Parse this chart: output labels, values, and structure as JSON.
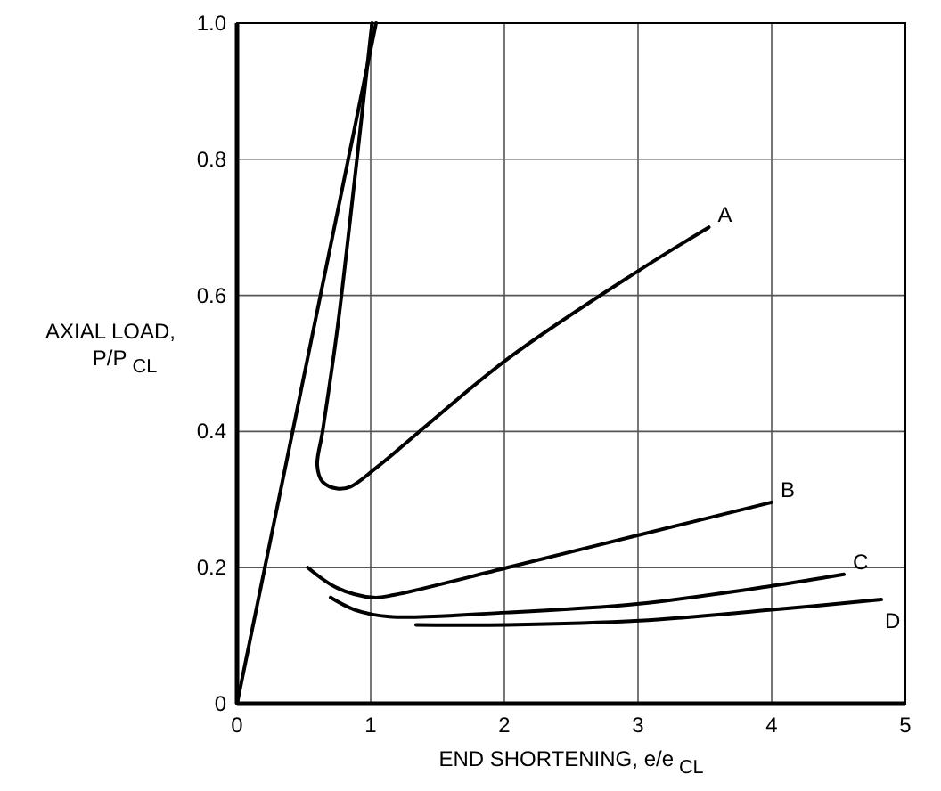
{
  "chart_data": {
    "type": "line",
    "xlabel": "END SHORTENING, e/e$_{CL}$",
    "ylabel": "AXIAL LOAD,\nP/P$_{CL}$",
    "xlim": [
      0,
      5
    ],
    "ylim": [
      0,
      1
    ],
    "xticks": [
      0,
      1,
      2,
      3,
      4,
      5
    ],
    "yticks": [
      0,
      0.2,
      0.4,
      0.6,
      0.8,
      {
        "value": 1,
        "label": "1.0"
      }
    ],
    "grid": true,
    "marker": "none",
    "line_style": "solid",
    "series": [
      {
        "color": "#000000",
        "x": [
          0,
          1.04
        ],
        "values": [
          0,
          1.0
        ]
      },
      {
        "name": "A",
        "color": "#000000",
        "x": [
          1.01,
          0.88,
          0.75,
          0.64,
          0.6,
          0.64,
          0.75,
          0.85,
          1.05,
          2.02,
          3.01,
          3.53
        ],
        "values": [
          1.0,
          0.77,
          0.55,
          0.4,
          0.35,
          0.326,
          0.316,
          0.319,
          0.348,
          0.506,
          0.637,
          0.7
        ]
      },
      {
        "name": "B",
        "color": "#000000",
        "x": [
          0.53,
          0.75,
          1.02,
          1.18,
          2.02,
          3.01,
          4.0
        ],
        "values": [
          0.2,
          0.17,
          0.156,
          0.16,
          0.2,
          0.248,
          0.296
        ]
      },
      {
        "name": "C",
        "color": "#000000",
        "x": [
          0.7,
          0.88,
          1.14,
          2.02,
          3.01,
          4.0,
          4.54
        ],
        "values": [
          0.156,
          0.138,
          0.128,
          0.134,
          0.147,
          0.173,
          0.19
        ]
      },
      {
        "name": "D",
        "color": "#000000",
        "x": [
          1.34,
          2.02,
          3.01,
          4.0,
          4.82
        ],
        "values": [
          0.116,
          0.116,
          0.122,
          0.138,
          0.153
        ]
      }
    ]
  }
}
